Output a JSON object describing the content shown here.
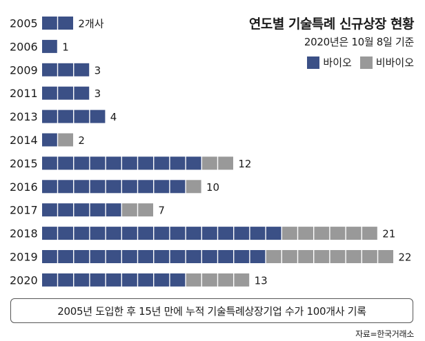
{
  "chart_data": {
    "type": "bar",
    "stacked": true,
    "orientation": "horizontal",
    "title": "연도별 기술특례 신규상장 현황",
    "subtitle": "2020년은 10월 8일 기준",
    "categories": [
      "2005",
      "2006",
      "2009",
      "2011",
      "2013",
      "2014",
      "2015",
      "2016",
      "2017",
      "2018",
      "2019",
      "2020"
    ],
    "series": [
      {
        "name": "바이오",
        "values": [
          2,
          1,
          3,
          3,
          4,
          1,
          10,
          9,
          5,
          15,
          14,
          9
        ]
      },
      {
        "name": "비바이오",
        "values": [
          0,
          0,
          0,
          0,
          0,
          1,
          2,
          1,
          2,
          6,
          8,
          4
        ]
      }
    ],
    "totals": [
      2,
      1,
      3,
      3,
      4,
      2,
      12,
      10,
      7,
      21,
      22,
      13
    ],
    "value_labels": [
      "2개사",
      "1",
      "3",
      "3",
      "4",
      "2",
      "12",
      "10",
      "7",
      "21",
      "22",
      "13"
    ],
    "colors": {
      "바이오": "#3b5086",
      "비바이오": "#999999"
    },
    "legend_position": "top-right"
  },
  "note": "2005년 도입한 후 15년 만에 누적 기술특례상장기업 수가 100개사 기록",
  "source": "자료=한국거래소"
}
